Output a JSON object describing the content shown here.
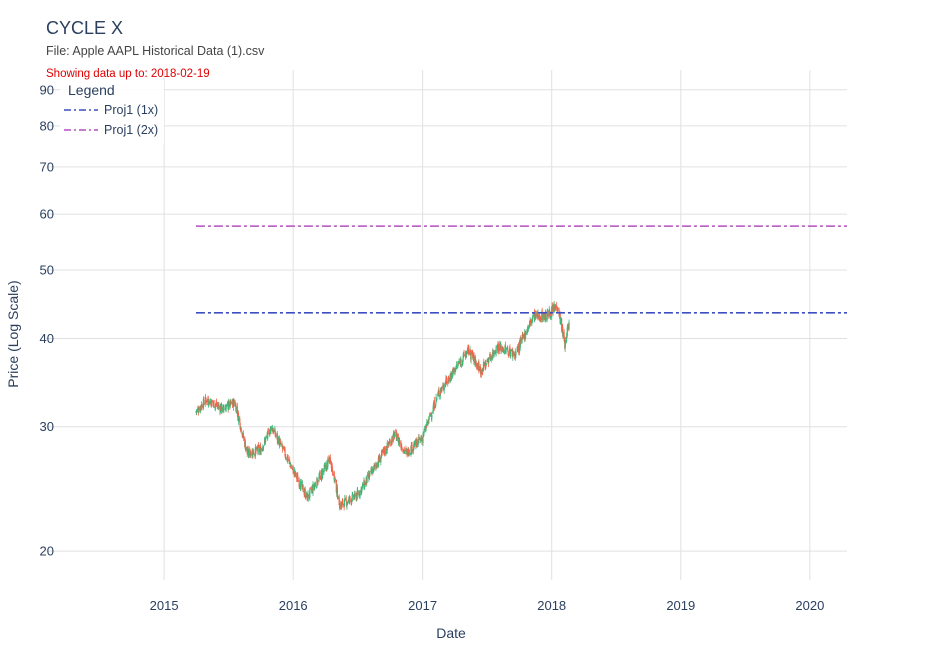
{
  "header": {
    "title": "CYCLE X",
    "subtitle": "File: Apple AAPL Historical Data (1).csv",
    "note": "Showing data up to: 2018-02-19"
  },
  "legend": {
    "title": "Legend",
    "items": [
      {
        "label": "Proj1 (1x)",
        "color": "#3d4fc0"
      },
      {
        "label": "Proj1 (2x)",
        "color": "#b44fc0"
      }
    ]
  },
  "colors": {
    "up": "#3cb878",
    "down": "#f0654a",
    "grid": "#e0e0e0"
  },
  "chart_data": {
    "type": "candlestick",
    "title": "CYCLE X",
    "xlabel": "Date",
    "ylabel": "Price (Log Scale)",
    "yscale": "log",
    "xlim": [
      "2014-02-01",
      "2020-04-15"
    ],
    "ylim": [
      18.2,
      96
    ],
    "xticks": [
      "2015",
      "2016",
      "2017",
      "2018",
      "2019",
      "2020"
    ],
    "xtick_years": [
      2015,
      2016,
      2017,
      2018,
      2019,
      2020
    ],
    "yticks": [
      20,
      30,
      40,
      50,
      60,
      70,
      80,
      90
    ],
    "ytick_labels": [
      "20",
      "30",
      "40",
      "50",
      "60",
      "70",
      "80",
      "90"
    ],
    "data_start": "2015-04-01",
    "data_end": "2018-02-19",
    "price_path": [
      {
        "date": "2015-04-01",
        "price": 31.5
      },
      {
        "date": "2015-05-01",
        "price": 32.8
      },
      {
        "date": "2015-06-15",
        "price": 31.8
      },
      {
        "date": "2015-07-20",
        "price": 32.5
      },
      {
        "date": "2015-08-24",
        "price": 27.5
      },
      {
        "date": "2015-10-01",
        "price": 27.8
      },
      {
        "date": "2015-11-01",
        "price": 30.0
      },
      {
        "date": "2016-01-01",
        "price": 26.0
      },
      {
        "date": "2016-02-10",
        "price": 23.8
      },
      {
        "date": "2016-04-15",
        "price": 27.0
      },
      {
        "date": "2016-05-12",
        "price": 23.2
      },
      {
        "date": "2016-07-01",
        "price": 24.0
      },
      {
        "date": "2016-09-01",
        "price": 27.0
      },
      {
        "date": "2016-10-15",
        "price": 29.3
      },
      {
        "date": "2016-11-15",
        "price": 27.5
      },
      {
        "date": "2017-01-01",
        "price": 29.0
      },
      {
        "date": "2017-02-15",
        "price": 33.5
      },
      {
        "date": "2017-05-10",
        "price": 38.5
      },
      {
        "date": "2017-06-15",
        "price": 36.0
      },
      {
        "date": "2017-08-01",
        "price": 39.0
      },
      {
        "date": "2017-09-20",
        "price": 38.0
      },
      {
        "date": "2017-11-10",
        "price": 43.0
      },
      {
        "date": "2017-12-15",
        "price": 43.0
      },
      {
        "date": "2018-01-18",
        "price": 44.5
      },
      {
        "date": "2018-02-08",
        "price": 39.0
      },
      {
        "date": "2018-02-19",
        "price": 42.8
      }
    ],
    "series": [
      {
        "name": "Proj1 (1x)",
        "value": 43.5,
        "start": "2015-04-01",
        "end": "2020-04-15",
        "style": "dashdot",
        "color": "#3d4fc0"
      },
      {
        "name": "Proj1 (2x)",
        "value": 57.7,
        "start": "2015-04-01",
        "end": "2020-04-15",
        "style": "dashdot",
        "color": "#b44fc0"
      }
    ]
  }
}
